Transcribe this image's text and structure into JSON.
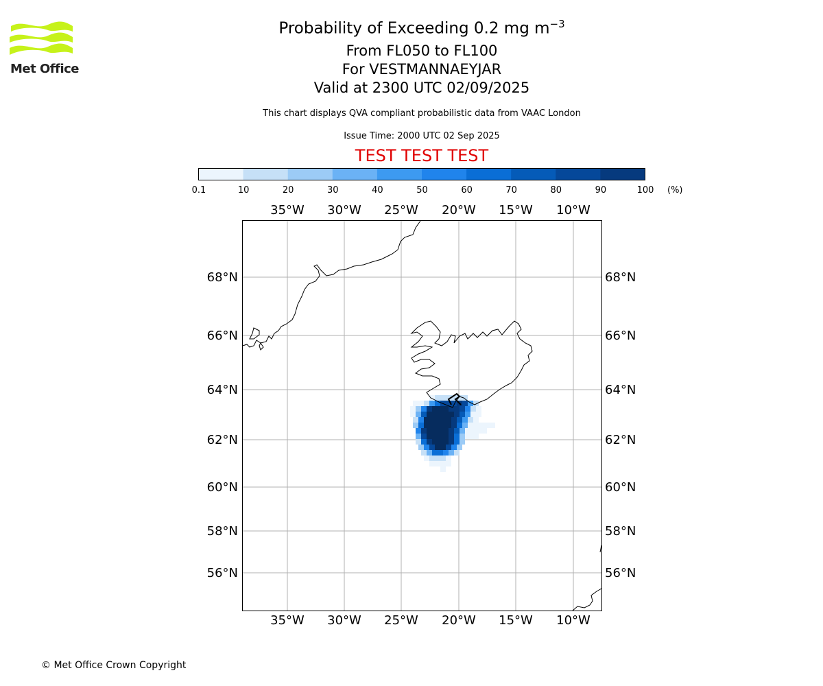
{
  "logo": {
    "text": "Met Office",
    "color": "#c6f21a"
  },
  "header": {
    "title_main": "Probability of Exceeding 0.2 mg m",
    "title_exp": "−3",
    "line2": "From FL050 to FL100",
    "line3": "For VESTMANNAEYJAR",
    "line4": "Valid at 2300 UTC 02/09/2025",
    "subtitle": "This chart displays QVA compliant probabilistic data from VAAC London",
    "issue_time": "Issue Time: 2000 UTC 02 Sep 2025",
    "test_banner": "TEST TEST TEST"
  },
  "colorbar": {
    "ticks": [
      "0.1",
      "10",
      "20",
      "30",
      "40",
      "50",
      "60",
      "70",
      "80",
      "90",
      "100"
    ],
    "unit": "(%)",
    "colors": [
      "#ecf5fd",
      "#c6e0f7",
      "#9ccbf6",
      "#6bb2f5",
      "#3d9af1",
      "#2084ec",
      "#0a6ed6",
      "#055bb8",
      "#05489a",
      "#063a7e",
      "#062c5e"
    ]
  },
  "map": {
    "lon_labels": [
      "35°W",
      "30°W",
      "25°W",
      "20°W",
      "15°W",
      "10°W"
    ],
    "lat_labels": [
      "68°N",
      "66°N",
      "64°N",
      "62°N",
      "60°N",
      "58°N",
      "56°N"
    ],
    "grid_color": "#b0b0b0"
  },
  "footer": {
    "copyright": "© Met Office Crown Copyright"
  }
}
